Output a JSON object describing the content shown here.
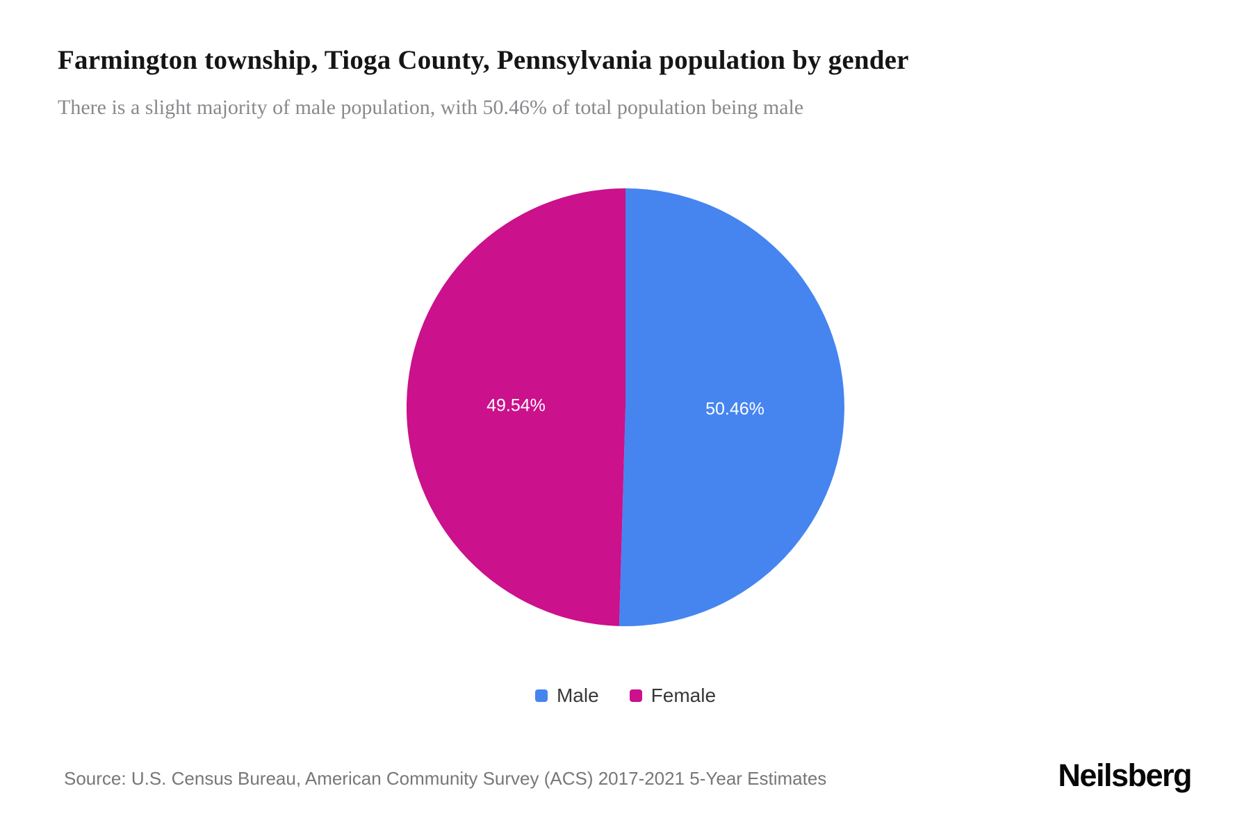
{
  "page": {
    "title": "Farmington township, Tioga County, Pennsylvania population by gender",
    "subtitle": "There is a slight majority of male population, with 50.46% of total population being male",
    "source": "Source: U.S. Census Bureau, American Community Survey (ACS) 2017-2021 5-Year Estimates",
    "brand": "Neilsberg"
  },
  "chart_data": {
    "type": "pie",
    "title": "Farmington township, Tioga County, Pennsylvania population by gender",
    "series": [
      {
        "name": "Male",
        "value": 50.46,
        "label": "50.46%",
        "color": "#4685F0"
      },
      {
        "name": "Female",
        "value": 49.54,
        "label": "49.54%",
        "color": "#CB118C"
      }
    ],
    "start_angle_deg": 0,
    "direction": "clockwise",
    "legend_position": "bottom",
    "label_radius_ratio": 0.5
  }
}
